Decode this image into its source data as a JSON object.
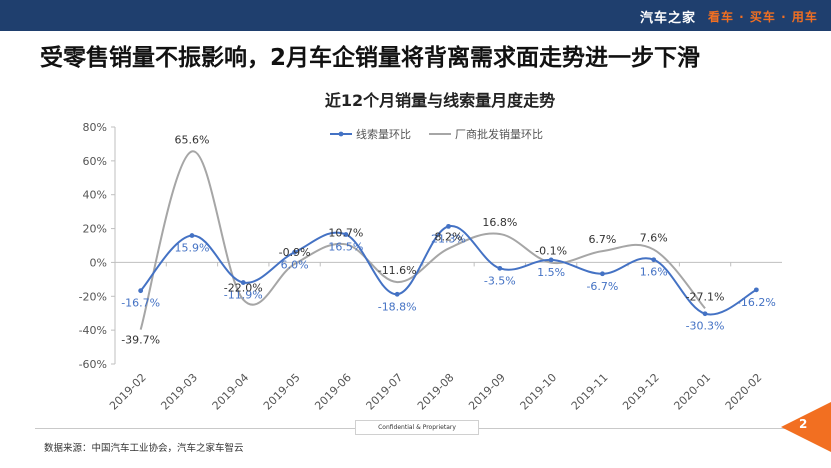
{
  "header": {
    "brand": "汽车之家",
    "slogan": "看车 · 买车 · 用车"
  },
  "headline": "受零售销量不振影响，2月车企销量将背离需求面走势进一步下滑",
  "chart_data": {
    "type": "line",
    "title": "近12个月销量与线索量月度走势",
    "categories": [
      "2019-02",
      "2019-03",
      "2019-04",
      "2019-05",
      "2019-06",
      "2019-07",
      "2019-08",
      "2019-09",
      "2019-10",
      "2019-11",
      "2019-12",
      "2020-01",
      "2020-02"
    ],
    "y_ticks": [
      "80%",
      "60%",
      "40%",
      "20%",
      "0%",
      "-20%",
      "-40%",
      "-60%"
    ],
    "ylim": [
      -60,
      80
    ],
    "unit": "%",
    "legend_position": "top",
    "grid": false,
    "series": [
      {
        "name": "线索量环比",
        "color": "#4472c4",
        "values": [
          -16.7,
          15.9,
          -11.9,
          6.0,
          16.5,
          -18.8,
          21.3,
          -3.5,
          1.5,
          -6.7,
          1.6,
          -30.3,
          -16.2
        ],
        "labels": [
          "-16.7%",
          "15.9%",
          "-11.9%",
          "6.0%",
          "16.5%",
          "-18.8%",
          "21.3%",
          "-3.5%",
          "1.5%",
          "-6.7%",
          "1.6%",
          "-30.3%",
          "-16.2%"
        ]
      },
      {
        "name": "厂商批发销量环比",
        "color": "#a6a6a6",
        "values": [
          -39.7,
          65.6,
          -22.0,
          -0.9,
          10.7,
          -11.6,
          8.2,
          16.8,
          -0.1,
          6.7,
          7.6,
          -27.1,
          null
        ],
        "labels": [
          "-39.7%",
          "65.6%",
          "-22.0%",
          "-0.9%",
          "10.7%",
          "-11.6%",
          "8.2%",
          "16.8%",
          "-0.1%",
          "6.7%",
          "7.6%",
          "-27.1%",
          ""
        ]
      }
    ]
  },
  "footer": {
    "confidential": "Confidential & Proprietary",
    "source": "数据来源：中国汽车工业协会，汽车之家车智云",
    "page": "2"
  }
}
